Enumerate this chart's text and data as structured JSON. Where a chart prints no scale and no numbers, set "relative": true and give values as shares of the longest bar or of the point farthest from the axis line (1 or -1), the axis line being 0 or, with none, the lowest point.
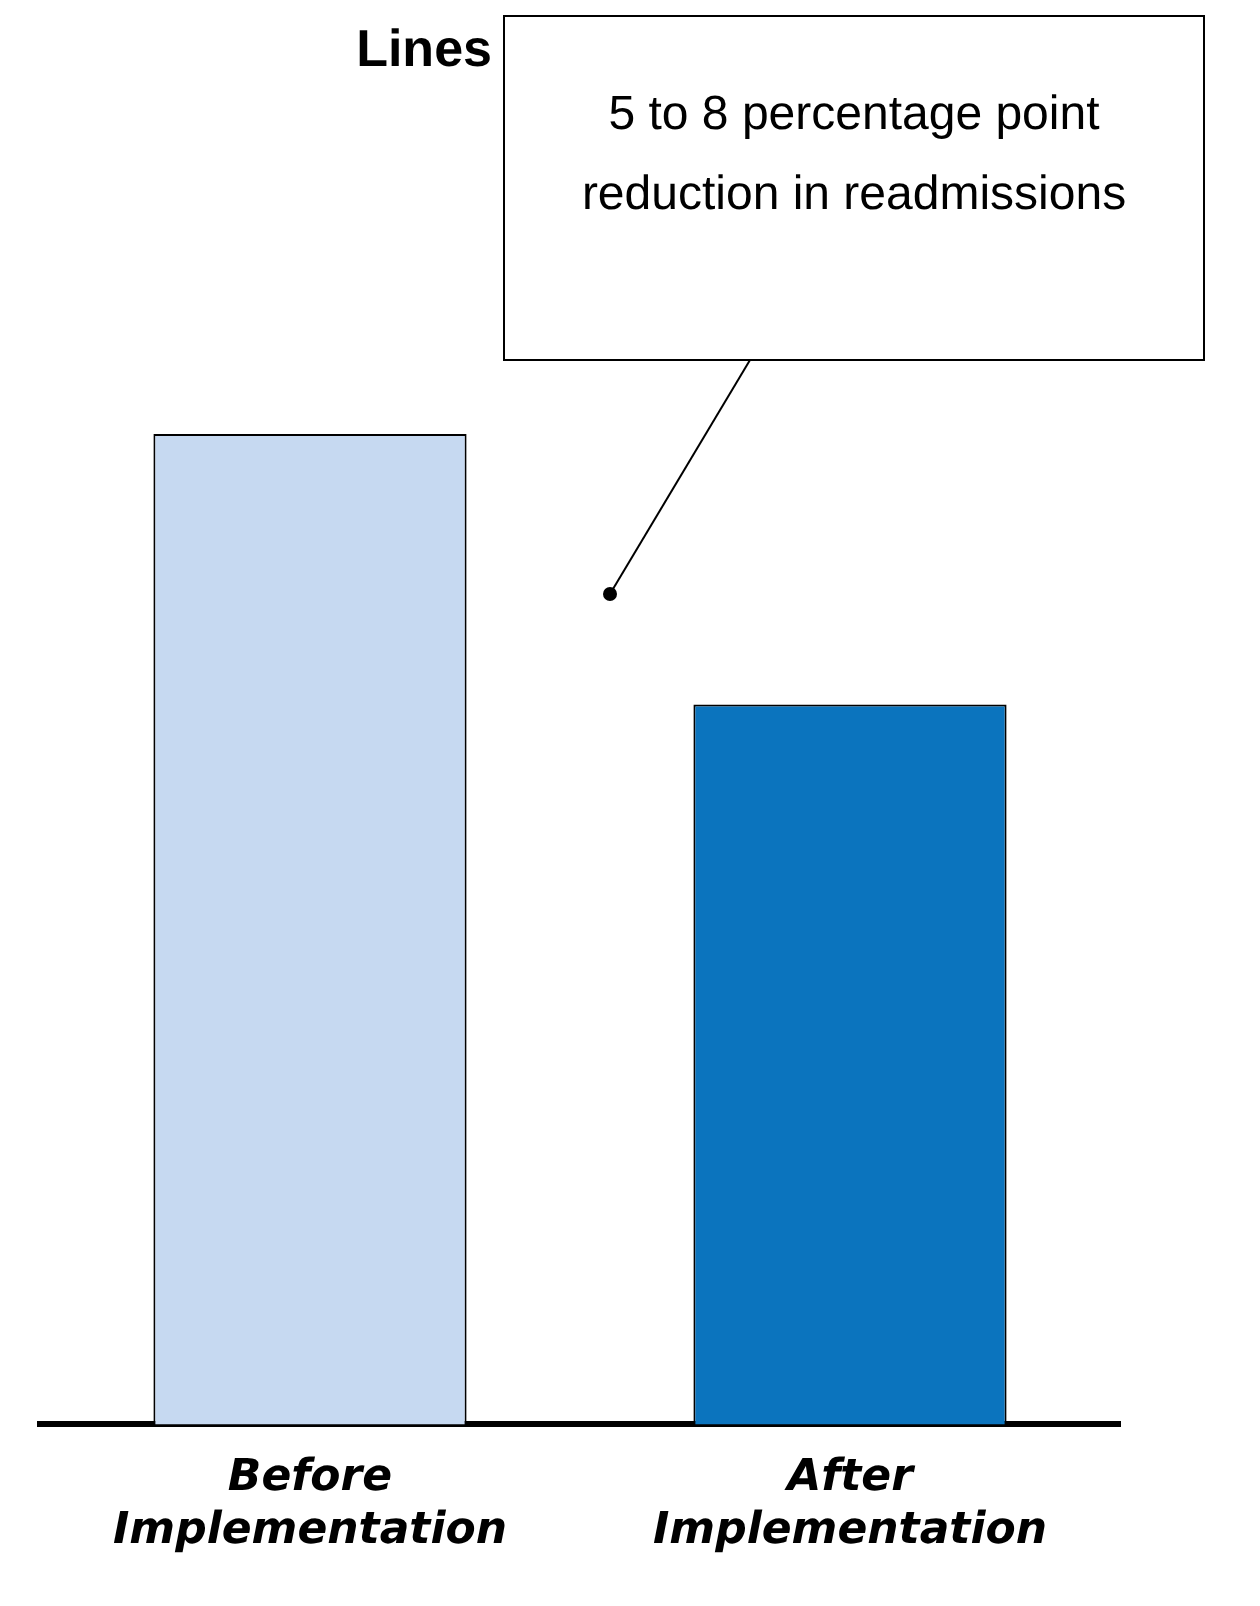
{
  "chart_data": {
    "type": "bar",
    "title": "Lines",
    "categories": [
      "Before Implementation",
      "After Implementation"
    ],
    "values": [
      1,
      0.727
    ],
    "colors": [
      "#c6d9f1",
      "#0b74be"
    ],
    "relative": true,
    "grid": false,
    "legend": false,
    "annotations": [
      "5 to 8 percentage point reduction in readmissions"
    ]
  }
}
